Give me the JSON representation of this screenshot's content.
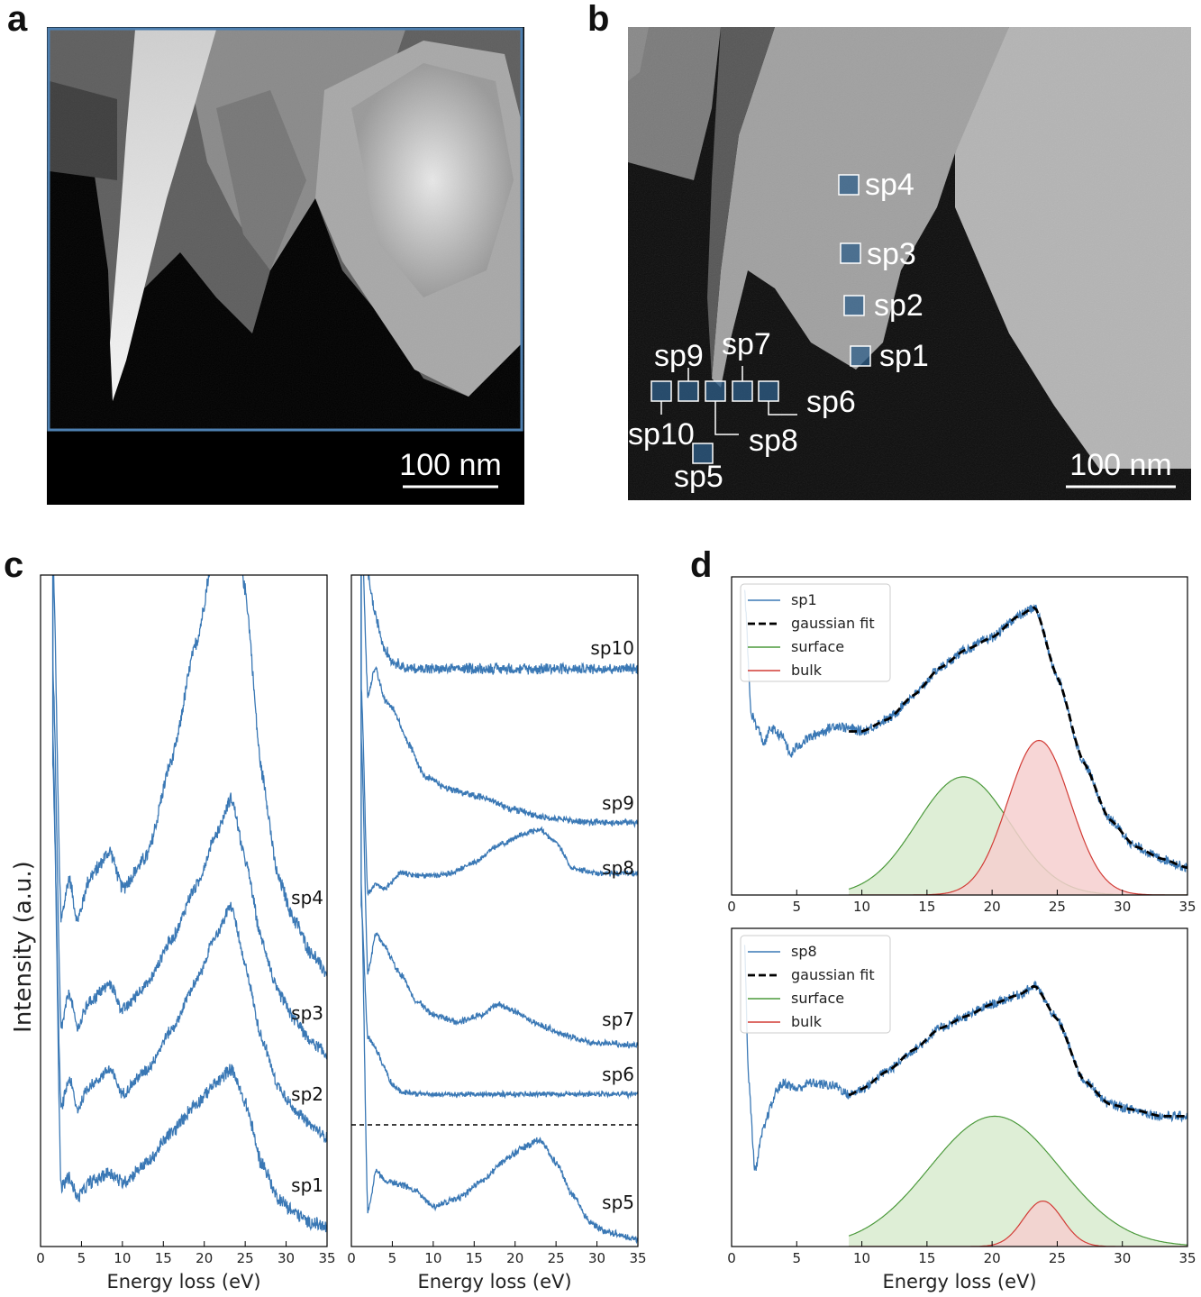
{
  "panels": {
    "a": {
      "letter": "a",
      "scale_bar": "100 nm"
    },
    "b": {
      "letter": "b",
      "scale_bar": "100 nm",
      "markers": [
        "sp1",
        "sp2",
        "sp3",
        "sp4",
        "sp5",
        "sp6",
        "sp7",
        "sp8",
        "sp9",
        "sp10"
      ]
    },
    "c": {
      "letter": "c"
    },
    "d": {
      "letter": "d"
    }
  },
  "colors": {
    "spectrum": "#3a78b5",
    "fit": "#000000",
    "surface": "#4c9a3c",
    "surface_fill": "#d8ebcf",
    "bulk": "#d23b35",
    "bulk_fill": "#f6cfcf",
    "frame_a": "#4d7fb0"
  },
  "chart_data": [
    {
      "id": "c-left",
      "type": "line",
      "xlabel": "Energy loss (eV)",
      "ylabel": "Intensity (a.u.)",
      "xlim": [
        0,
        35
      ],
      "xticks": [
        0,
        5,
        10,
        15,
        20,
        25,
        30,
        35
      ],
      "series": [
        {
          "name": "sp4",
          "points": [
            [
              1.5,
              100
            ],
            [
              2.5,
              30
            ],
            [
              3.5,
              38
            ],
            [
              4.5,
              30
            ],
            [
              6,
              38
            ],
            [
              8.5,
              43
            ],
            [
              10,
              36
            ],
            [
              13,
              42
            ],
            [
              16,
              60
            ],
            [
              19,
              82
            ],
            [
              21.5,
              102
            ],
            [
              23.3,
              116
            ],
            [
              25,
              92
            ],
            [
              27,
              58
            ],
            [
              29,
              38
            ],
            [
              31,
              30
            ],
            [
              33,
              24
            ],
            [
              35,
              20
            ]
          ]
        },
        {
          "name": "sp3",
          "points": [
            [
              1.5,
              100
            ],
            [
              2.5,
              18
            ],
            [
              3.5,
              26
            ],
            [
              4.5,
              18
            ],
            [
              6,
              24
            ],
            [
              8.5,
              28
            ],
            [
              10,
              22
            ],
            [
              13,
              28
            ],
            [
              16,
              38
            ],
            [
              19,
              50
            ],
            [
              21.5,
              62
            ],
            [
              23.3,
              70
            ],
            [
              25,
              56
            ],
            [
              27,
              38
            ],
            [
              29,
              26
            ],
            [
              31,
              20
            ],
            [
              33,
              15
            ],
            [
              35,
              12
            ]
          ]
        },
        {
          "name": "sp2",
          "points": [
            [
              1.5,
              100
            ],
            [
              2.5,
              14
            ],
            [
              3.5,
              22
            ],
            [
              4.5,
              14
            ],
            [
              6,
              20
            ],
            [
              8.5,
              24
            ],
            [
              10,
              18
            ],
            [
              13,
              24
            ],
            [
              16,
              34
            ],
            [
              19,
              46
            ],
            [
              21.5,
              58
            ],
            [
              23.3,
              65
            ],
            [
              25,
              50
            ],
            [
              27,
              32
            ],
            [
              29,
              20
            ],
            [
              31,
              14
            ],
            [
              33,
              10
            ],
            [
              35,
              7
            ]
          ]
        },
        {
          "name": "sp1",
          "points": [
            [
              1.5,
              100
            ],
            [
              2.5,
              8
            ],
            [
              3.5,
              10
            ],
            [
              4.5,
              6
            ],
            [
              6,
              9
            ],
            [
              8.5,
              11
            ],
            [
              10,
              9
            ],
            [
              13,
              13
            ],
            [
              16,
              19
            ],
            [
              19,
              25
            ],
            [
              21.5,
              29
            ],
            [
              23.3,
              32
            ],
            [
              25,
              25
            ],
            [
              27,
              13
            ],
            [
              29,
              6
            ],
            [
              31,
              3
            ],
            [
              33,
              1
            ],
            [
              35,
              0
            ]
          ]
        }
      ],
      "series_labels": [
        {
          "text": "sp4"
        },
        {
          "text": "sp3"
        },
        {
          "text": "sp2"
        },
        {
          "text": "sp1"
        }
      ]
    },
    {
      "id": "c-right",
      "type": "line",
      "xlabel": "Energy loss (eV)",
      "xlim": [
        0,
        35
      ],
      "xticks": [
        0,
        5,
        10,
        15,
        20,
        25,
        30,
        35
      ],
      "series": [
        {
          "name": "sp10",
          "points": [
            [
              1.2,
              100
            ],
            [
              2,
              86
            ],
            [
              3,
              80
            ],
            [
              4,
              76
            ],
            [
              5,
              74
            ],
            [
              7,
              73
            ],
            [
              15,
              73
            ],
            [
              25,
              73
            ],
            [
              35,
              73
            ]
          ]
        },
        {
          "name": "sp9",
          "points": [
            [
              1.2,
              100
            ],
            [
              2,
              55
            ],
            [
              3,
              62
            ],
            [
              3.5,
              58
            ],
            [
              4,
              54
            ],
            [
              5,
              52
            ],
            [
              7,
              43
            ],
            [
              9,
              35
            ],
            [
              12,
              32
            ],
            [
              16,
              30
            ],
            [
              20,
              27
            ],
            [
              24,
              25
            ],
            [
              28,
              24
            ],
            [
              35,
              24
            ]
          ]
        },
        {
          "name": "sp8",
          "points": [
            [
              1.2,
              100
            ],
            [
              2,
              20
            ],
            [
              3,
              24
            ],
            [
              4,
              22
            ],
            [
              6,
              28
            ],
            [
              9,
              27
            ],
            [
              12,
              28
            ],
            [
              15,
              32
            ],
            [
              18,
              39
            ],
            [
              21,
              43
            ],
            [
              23,
              45
            ],
            [
              25,
              40
            ],
            [
              27,
              30
            ],
            [
              30,
              28
            ],
            [
              35,
              28
            ]
          ]
        },
        {
          "name": "sp7",
          "points": [
            [
              1.2,
              100
            ],
            [
              2,
              30
            ],
            [
              3,
              42
            ],
            [
              4,
              38
            ],
            [
              6,
              30
            ],
            [
              8,
              22
            ],
            [
              10,
              18
            ],
            [
              13,
              16
            ],
            [
              16,
              18
            ],
            [
              18,
              21
            ],
            [
              20,
              19
            ],
            [
              23,
              15
            ],
            [
              26,
              12
            ],
            [
              29,
              10
            ],
            [
              35,
              9
            ]
          ]
        },
        {
          "name": "sp6",
          "points": [
            [
              1.2,
              100
            ],
            [
              2,
              45
            ],
            [
              3,
              40
            ],
            [
              4,
              32
            ],
            [
              5,
              25
            ],
            [
              6,
              22
            ],
            [
              8,
              21
            ],
            [
              15,
              21
            ],
            [
              25,
              21
            ],
            [
              35,
              21
            ]
          ]
        },
        {
          "name": "sp5",
          "points": [
            [
              1.2,
              100
            ],
            [
              2,
              10
            ],
            [
              3,
              22
            ],
            [
              4,
              19
            ],
            [
              6,
              18
            ],
            [
              8,
              16
            ],
            [
              10,
              12
            ],
            [
              13,
              14
            ],
            [
              16,
              19
            ],
            [
              19,
              25
            ],
            [
              21,
              28
            ],
            [
              23,
              30
            ],
            [
              25,
              24
            ],
            [
              27,
              15
            ],
            [
              29,
              8
            ],
            [
              31,
              5
            ],
            [
              35,
              3
            ]
          ]
        }
      ],
      "series_labels": [
        {
          "text": "sp10"
        },
        {
          "text": "sp9"
        },
        {
          "text": "sp8"
        },
        {
          "text": "sp7"
        },
        {
          "text": "sp6"
        },
        {
          "text": "sp5"
        }
      ]
    },
    {
      "id": "d-top",
      "type": "line",
      "xlim": [
        0,
        35
      ],
      "xticks": [
        0,
        5,
        10,
        15,
        20,
        25,
        30,
        35
      ],
      "legend": [
        "sp1",
        "gaussian fit",
        "surface",
        "bulk"
      ],
      "legend_position": "top-left",
      "series": [
        {
          "name": "sp1",
          "points": [
            [
              1,
              100
            ],
            [
              1.5,
              60
            ],
            [
              2,
              55
            ],
            [
              2.5,
              50
            ],
            [
              3,
              55
            ],
            [
              4,
              52
            ],
            [
              4.5,
              46
            ],
            [
              5,
              49
            ],
            [
              6,
              52
            ],
            [
              7,
              54
            ],
            [
              8,
              56
            ],
            [
              9,
              55
            ],
            [
              10,
              54
            ],
            [
              12,
              58
            ],
            [
              14,
              66
            ],
            [
              16,
              75
            ],
            [
              18,
              81
            ],
            [
              20,
              85
            ],
            [
              22,
              92
            ],
            [
              23.3,
              95
            ],
            [
              25,
              72
            ],
            [
              27,
              44
            ],
            [
              29,
              25
            ],
            [
              31,
              16
            ],
            [
              33,
              12
            ],
            [
              35,
              9
            ]
          ]
        },
        {
          "name": "gaussian fit",
          "points": [
            [
              9,
              54
            ],
            [
              10,
              54
            ],
            [
              12,
              58
            ],
            [
              14,
              66
            ],
            [
              16,
              75
            ],
            [
              18,
              81
            ],
            [
              20,
              85
            ],
            [
              22,
              92
            ],
            [
              23.3,
              95
            ],
            [
              25,
              72
            ],
            [
              27,
              44
            ],
            [
              29,
              25
            ],
            [
              31,
              16
            ],
            [
              33,
              12
            ],
            [
              35,
              9
            ]
          ]
        },
        {
          "name": "surface",
          "gaussian": {
            "mu": 17.8,
            "sigma": 3.6,
            "amp": 39,
            "x0": 9,
            "x1": 35
          }
        },
        {
          "name": "bulk",
          "gaussian": {
            "mu": 23.6,
            "sigma": 2.4,
            "amp": 51,
            "x0": 9,
            "x1": 35
          }
        }
      ]
    },
    {
      "id": "d-bottom",
      "type": "line",
      "xlabel": "Energy loss (eV)",
      "xlim": [
        0,
        35
      ],
      "xticks": [
        0,
        5,
        10,
        15,
        20,
        25,
        30,
        35
      ],
      "legend": [
        "sp8",
        "gaussian fit",
        "surface",
        "bulk"
      ],
      "legend_position": "top-left",
      "series": [
        {
          "name": "sp8",
          "points": [
            [
              1,
              100
            ],
            [
              1.3,
              55
            ],
            [
              1.8,
              25
            ],
            [
              2.4,
              38
            ],
            [
              3,
              46
            ],
            [
              3.5,
              52
            ],
            [
              4,
              54
            ],
            [
              5,
              52
            ],
            [
              6,
              54
            ],
            [
              8,
              53
            ],
            [
              9,
              50
            ],
            [
              10,
              52
            ],
            [
              12,
              58
            ],
            [
              14,
              65
            ],
            [
              16,
              72
            ],
            [
              18,
              76
            ],
            [
              20,
              80
            ],
            [
              22,
              83
            ],
            [
              23.3,
              86
            ],
            [
              25,
              75
            ],
            [
              27,
              55
            ],
            [
              29,
              47
            ],
            [
              31,
              45
            ],
            [
              33,
              43
            ],
            [
              35,
              43
            ]
          ]
        },
        {
          "name": "gaussian fit",
          "points": [
            [
              9,
              50
            ],
            [
              10,
              52
            ],
            [
              12,
              58
            ],
            [
              14,
              65
            ],
            [
              16,
              72
            ],
            [
              18,
              76
            ],
            [
              20,
              80
            ],
            [
              22,
              83
            ],
            [
              23.3,
              86
            ],
            [
              25,
              75
            ],
            [
              27,
              55
            ],
            [
              29,
              47
            ],
            [
              31,
              45
            ],
            [
              33,
              43
            ],
            [
              35,
              43
            ]
          ]
        },
        {
          "name": "surface",
          "gaussian": {
            "mu": 20.2,
            "sigma": 5.0,
            "amp": 43,
            "x0": 9,
            "x1": 35
          }
        },
        {
          "name": "bulk",
          "gaussian": {
            "mu": 23.9,
            "sigma": 1.5,
            "amp": 15,
            "x0": 9,
            "x1": 35
          }
        }
      ]
    }
  ]
}
